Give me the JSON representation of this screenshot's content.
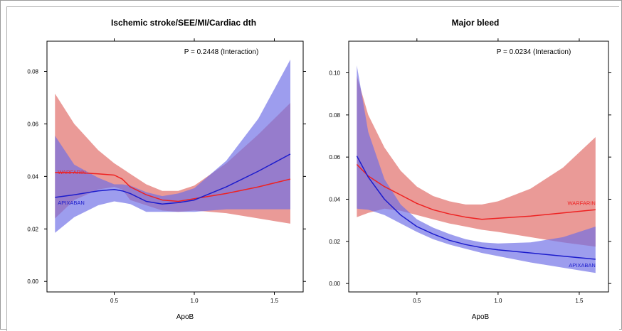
{
  "chart_data": [
    {
      "type": "line",
      "title": "Ischemic stroke/SEE/MI/Cardiac dth",
      "xlabel": "ApoB",
      "ylabel": "",
      "annotation": "P = 0.2448 (Interaction)",
      "xlim": [
        0.08,
        1.68
      ],
      "ylim": [
        -0.004,
        0.0915
      ],
      "x_ticks": [
        0.5,
        1.0,
        1.5
      ],
      "x_tick_labels": [
        "0.5",
        "1.0",
        "1.5"
      ],
      "y_ticks": [
        0.0,
        0.02,
        0.04,
        0.06,
        0.08
      ],
      "y_tick_labels": [
        "0.00",
        "0.02",
        "0.04",
        "0.06",
        "0.08"
      ],
      "series": [
        {
          "name": "WARFARIN",
          "color": "#ee2222",
          "band_color": "#e06a66",
          "x": [
            0.13,
            0.25,
            0.4,
            0.5,
            0.55,
            0.6,
            0.7,
            0.8,
            0.9,
            1.0,
            1.2,
            1.4,
            1.6
          ],
          "y": [
            0.0415,
            0.0415,
            0.041,
            0.0405,
            0.039,
            0.036,
            0.033,
            0.031,
            0.0305,
            0.0315,
            0.0335,
            0.036,
            0.039
          ],
          "lower": [
            0.024,
            0.031,
            0.035,
            0.036,
            0.035,
            0.031,
            0.029,
            0.027,
            0.0265,
            0.027,
            0.026,
            0.024,
            0.022
          ],
          "upper": [
            0.0715,
            0.06,
            0.05,
            0.045,
            0.043,
            0.041,
            0.037,
            0.0345,
            0.0345,
            0.0365,
            0.045,
            0.056,
            0.068
          ]
        },
        {
          "name": "APIXABAN",
          "color": "#1c1ccc",
          "band_color": "#6e6ee6",
          "x": [
            0.13,
            0.25,
            0.4,
            0.5,
            0.55,
            0.6,
            0.7,
            0.8,
            0.9,
            1.0,
            1.2,
            1.4,
            1.6
          ],
          "y": [
            0.032,
            0.033,
            0.0345,
            0.035,
            0.0345,
            0.0335,
            0.0305,
            0.0295,
            0.03,
            0.031,
            0.036,
            0.042,
            0.0485
          ],
          "lower": [
            0.0185,
            0.0245,
            0.029,
            0.0305,
            0.03,
            0.0295,
            0.0265,
            0.0265,
            0.0265,
            0.0265,
            0.0275,
            0.0275,
            0.0275
          ],
          "upper": [
            0.0555,
            0.0445,
            0.0395,
            0.037,
            0.037,
            0.0365,
            0.034,
            0.0325,
            0.0335,
            0.0355,
            0.046,
            0.062,
            0.0845
          ]
        }
      ]
    },
    {
      "type": "line",
      "title": "Major bleed",
      "xlabel": "ApoB",
      "ylabel": "",
      "annotation": "P = 0.0234 (Interaction)",
      "xlim": [
        0.08,
        1.68
      ],
      "ylim": [
        -0.004,
        0.115
      ],
      "x_ticks": [
        0.5,
        1.0,
        1.5
      ],
      "x_tick_labels": [
        "0.5",
        "1.0",
        "1.5"
      ],
      "y_ticks": [
        0.0,
        0.02,
        0.04,
        0.06,
        0.08,
        0.1
      ],
      "y_tick_labels": [
        "0.00",
        "0.02",
        "0.04",
        "0.06",
        "0.08",
        "0.10"
      ],
      "series": [
        {
          "name": "WARFARIN",
          "color": "#ee2222",
          "band_color": "#e06a66",
          "x": [
            0.13,
            0.2,
            0.3,
            0.4,
            0.5,
            0.6,
            0.7,
            0.8,
            0.9,
            1.0,
            1.2,
            1.4,
            1.6
          ],
          "y": [
            0.0565,
            0.051,
            0.046,
            0.042,
            0.038,
            0.035,
            0.033,
            0.0315,
            0.0305,
            0.031,
            0.032,
            0.0335,
            0.035
          ],
          "lower": [
            0.0315,
            0.0335,
            0.0355,
            0.0345,
            0.0325,
            0.0305,
            0.0285,
            0.027,
            0.0255,
            0.0245,
            0.022,
            0.0195,
            0.0175
          ],
          "upper": [
            0.0985,
            0.08,
            0.0645,
            0.0535,
            0.046,
            0.0415,
            0.039,
            0.0375,
            0.0375,
            0.039,
            0.045,
            0.055,
            0.0695
          ]
        },
        {
          "name": "APIXABAN",
          "color": "#1c1ccc",
          "band_color": "#6e6ee6",
          "x": [
            0.13,
            0.2,
            0.3,
            0.4,
            0.5,
            0.6,
            0.7,
            0.8,
            0.9,
            1.0,
            1.2,
            1.4,
            1.6
          ],
          "y": [
            0.0605,
            0.0505,
            0.04,
            0.0325,
            0.027,
            0.0235,
            0.0205,
            0.0185,
            0.017,
            0.016,
            0.0145,
            0.013,
            0.0115
          ],
          "lower": [
            0.0355,
            0.035,
            0.0325,
            0.0285,
            0.0245,
            0.021,
            0.0185,
            0.0165,
            0.0145,
            0.013,
            0.01,
            0.0075,
            0.005
          ],
          "upper": [
            0.1035,
            0.072,
            0.0495,
            0.0375,
            0.0305,
            0.0265,
            0.0235,
            0.021,
            0.0195,
            0.019,
            0.0195,
            0.022,
            0.027
          ]
        }
      ]
    }
  ]
}
